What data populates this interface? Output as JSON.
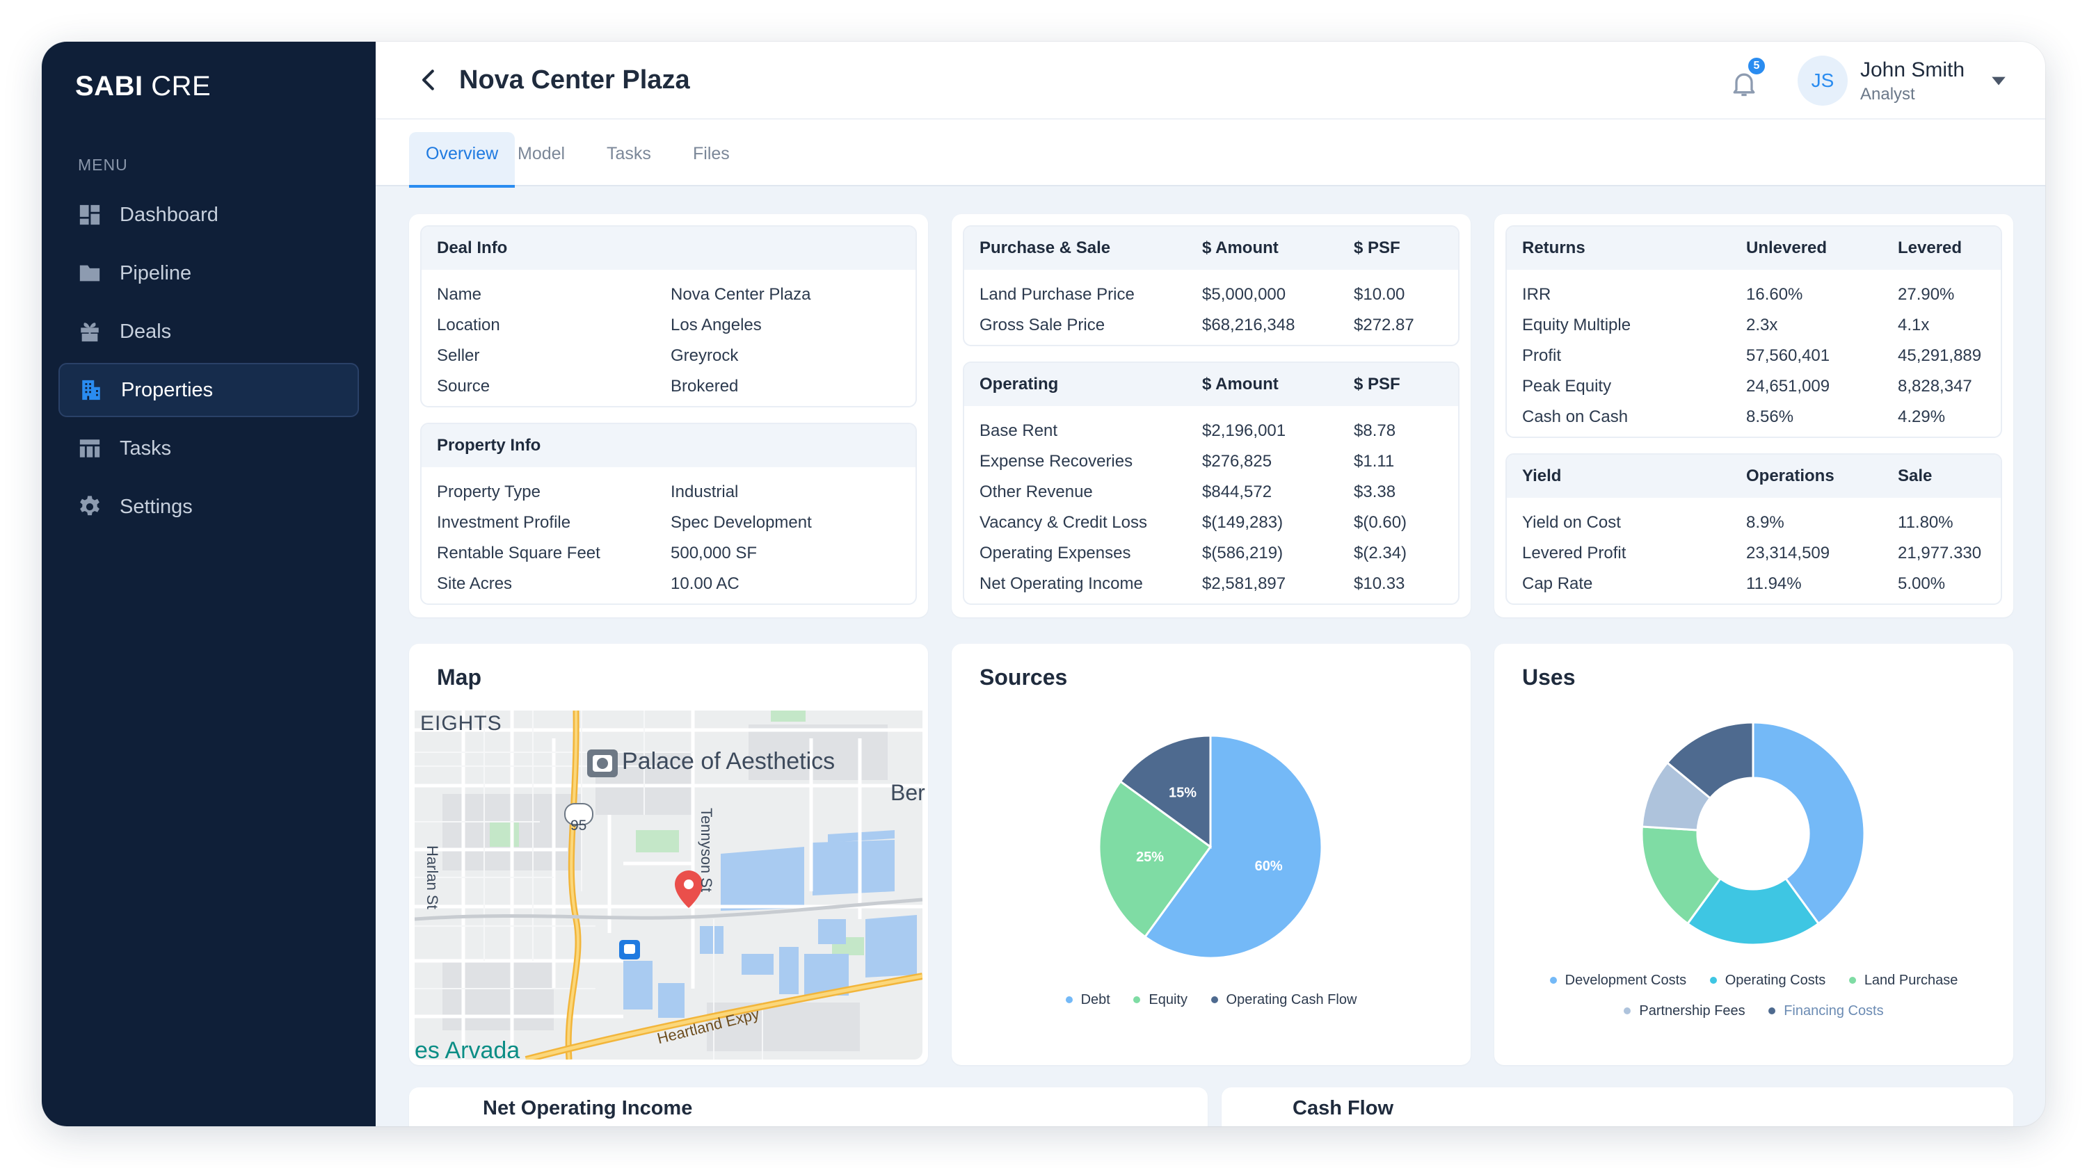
{
  "brand": {
    "primary": "SABI",
    "secondary": "CRE"
  },
  "sidebar": {
    "menu_label": "MENU",
    "items": [
      {
        "label": "Dashboard",
        "icon": "grid-icon"
      },
      {
        "label": "Pipeline",
        "icon": "folder-icon"
      },
      {
        "label": "Deals",
        "icon": "gift-icon"
      },
      {
        "label": "Properties",
        "icon": "building-icon",
        "active": true
      },
      {
        "label": "Tasks",
        "icon": "table-icon"
      },
      {
        "label": "Settings",
        "icon": "gear-icon"
      }
    ]
  },
  "header": {
    "title": "Nova Center Plaza",
    "notification_count": "5",
    "user": {
      "initials": "JS",
      "name": "John Smith",
      "role": "Analyst"
    }
  },
  "tabs": [
    "Overview",
    "Model",
    "Tasks",
    "Files"
  ],
  "deal_info": {
    "title": "Deal Info",
    "rows": [
      [
        "Name",
        "Nova Center Plaza"
      ],
      [
        "Location",
        "Los Angeles"
      ],
      [
        "Seller",
        "Greyrock"
      ],
      [
        "Source",
        "Brokered"
      ]
    ]
  },
  "property_info": {
    "title": "Property Info",
    "rows": [
      [
        "Property Type",
        "Industrial"
      ],
      [
        "Investment Profile",
        "Spec Development"
      ],
      [
        "Rentable Square Feet",
        "500,000 SF"
      ],
      [
        "Site Acres",
        "10.00 AC"
      ]
    ]
  },
  "purchase_sale": {
    "headers": [
      "Purchase & Sale",
      "$ Amount",
      "$ PSF"
    ],
    "rows": [
      [
        "Land Purchase Price",
        "$5,000,000",
        "$10.00"
      ],
      [
        "Gross Sale Price",
        "$68,216,348",
        "$272.87"
      ]
    ]
  },
  "operating": {
    "headers": [
      "Operating",
      "$ Amount",
      "$ PSF"
    ],
    "rows": [
      [
        "Base Rent",
        "$2,196,001",
        "$8.78"
      ],
      [
        "Expense Recoveries",
        "$276,825",
        "$1.11"
      ],
      [
        "Other Revenue",
        "$844,572",
        "$3.38"
      ],
      [
        "Vacancy & Credit Loss",
        "$(149,283)",
        "$(0.60)"
      ],
      [
        "Operating Expenses",
        "$(586,219)",
        "$(2.34)"
      ],
      [
        "Net Operating Income",
        "$2,581,897",
        "$10.33"
      ]
    ]
  },
  "returns": {
    "headers": [
      "Returns",
      "Unlevered",
      "Levered"
    ],
    "rows": [
      [
        "IRR",
        "16.60%",
        "27.90%"
      ],
      [
        "Equity Multiple",
        "2.3x",
        "4.1x"
      ],
      [
        "Profit",
        "57,560,401",
        "45,291,889"
      ],
      [
        "Peak Equity",
        "24,651,009",
        "8,828,347"
      ],
      [
        "Cash on Cash",
        "8.56%",
        "4.29%"
      ]
    ]
  },
  "yield": {
    "headers": [
      "Yield",
      "Operations",
      "Sale"
    ],
    "rows": [
      [
        "Yield on Cost",
        "8.9%",
        "11.80%"
      ],
      [
        "Levered Profit",
        "23,314,509",
        "21,977.330"
      ],
      [
        "Cap Rate",
        "11.94%",
        "5.00%"
      ]
    ]
  },
  "map": {
    "title": "Map",
    "labels": {
      "neighborhood": "EIGHTS",
      "poi": "Palace of Aesthetics",
      "partial": "Ber",
      "street1": "Harlan St",
      "street2": "Tennyson St",
      "route": "95",
      "city": "es Arvada",
      "expressway": "Heartland Expy"
    }
  },
  "sources": {
    "title": "Sources",
    "slices": [
      {
        "name": "Debt",
        "value": 60,
        "label": "60%",
        "color": "#74b9f7"
      },
      {
        "name": "Equity",
        "value": 25,
        "label": "25%",
        "color": "#7fdca4"
      },
      {
        "name": "Operating Cash Flow",
        "value": 15,
        "label": "15%",
        "color": "#4e6a8f"
      }
    ]
  },
  "uses": {
    "title": "Uses",
    "slices": [
      {
        "name": "Development Costs",
        "value": 40,
        "color": "#74b9f7"
      },
      {
        "name": "Operating Costs",
        "value": 20,
        "color": "#3ec6e3"
      },
      {
        "name": "Land Purchase",
        "value": 16,
        "color": "#7fdca4"
      },
      {
        "name": "Partnership Fees",
        "value": 10,
        "color": "#aec3dc"
      },
      {
        "name": "Financing Costs",
        "value": 14,
        "color": "#4e6a8f"
      }
    ]
  },
  "bottom": {
    "noi_title": "Net Operating Income",
    "cashflow_title": "Cash Flow"
  }
}
